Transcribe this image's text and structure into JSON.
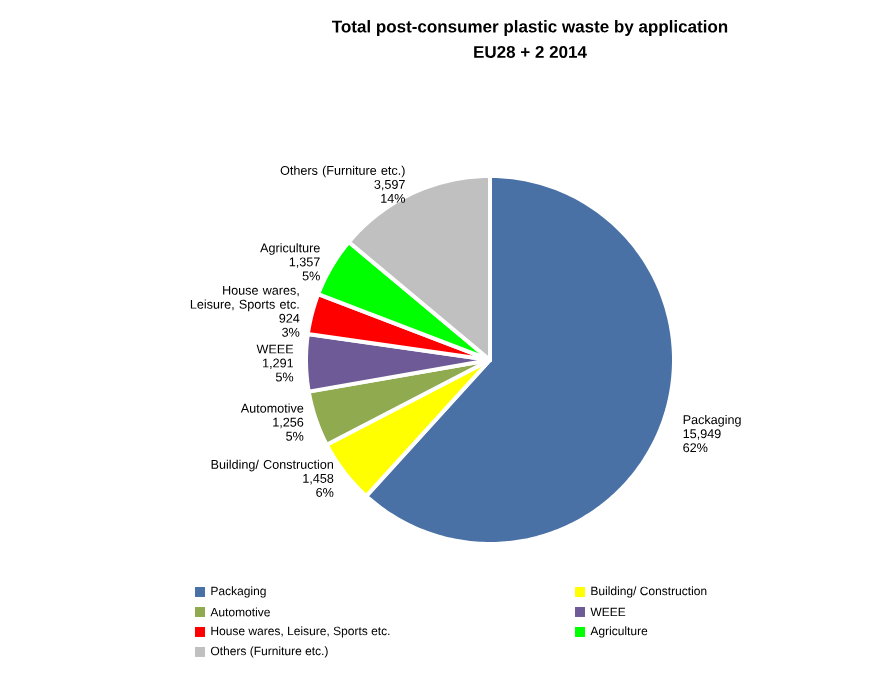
{
  "chart_data": {
    "type": "pie",
    "title": "Total post-consumer plastic waste by application",
    "subtitle": "EU28 + 2 2014",
    "categories": [
      "Packaging",
      "Building/ Construction",
      "Automotive",
      "WEEE",
      "House wares, Leisure, Sports etc.",
      "Agriculture",
      "Others (Furniture etc.)"
    ],
    "values": [
      15949,
      1458,
      1256,
      1291,
      924,
      1357,
      3597
    ],
    "colors": [
      "#4a71a6",
      "#ffff00",
      "#8faa4f",
      "#6e5a96",
      "#ff0000",
      "#00ff00",
      "#c0c0c0"
    ],
    "value_labels": [
      "15,949",
      "1,458",
      "1,256",
      "1,291",
      "924",
      "1,357",
      "3,597"
    ],
    "annotations": [
      "62%",
      "6%",
      "5%",
      "5%",
      "3%",
      "5%",
      "14%"
    ],
    "legend": "bottom"
  }
}
